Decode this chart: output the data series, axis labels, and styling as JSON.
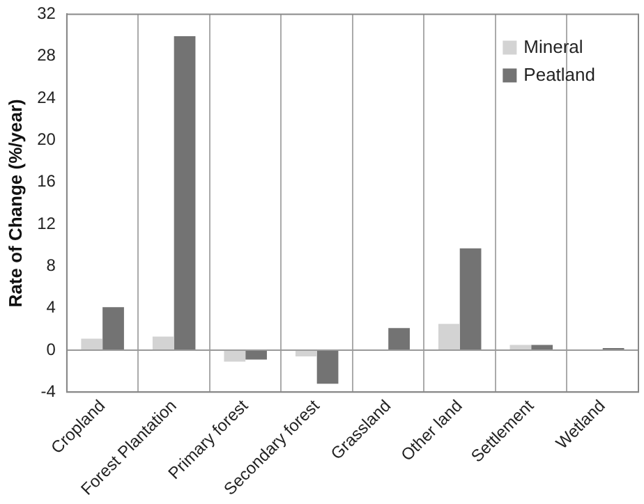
{
  "chart_data": {
    "type": "bar",
    "ylabel": "Rate of Change (%/year)",
    "categories": [
      "Cropland",
      "Forest Plantation",
      "Primary forest",
      "Secondary forest",
      "Grassland",
      "Other land",
      "Settlement",
      "Wetland"
    ],
    "series": [
      {
        "name": "Mineral",
        "color": "#d3d3d3",
        "values": [
          1.1,
          1.3,
          -1.1,
          -0.6,
          0.0,
          2.5,
          0.5,
          0.0
        ]
      },
      {
        "name": "Peatland",
        "color": "#737373",
        "values": [
          4.1,
          29.9,
          -0.9,
          -3.2,
          2.1,
          9.7,
          0.5,
          0.2
        ]
      }
    ],
    "ylim": [
      -4,
      32
    ],
    "yticks": [
      -4,
      0,
      4,
      8,
      12,
      16,
      20,
      24,
      28,
      32
    ],
    "grid": "x",
    "legend": "top right"
  }
}
